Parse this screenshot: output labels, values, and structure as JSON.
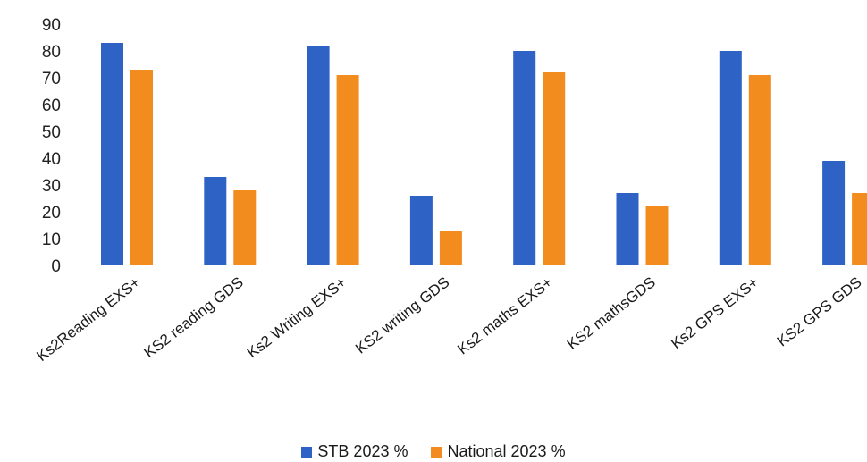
{
  "chart_data": {
    "type": "bar",
    "categories": [
      "Ks2Reading EXS+",
      "KS2 reading GDS",
      "Ks2 Writing EXS+",
      "KS2 writing GDS",
      "Ks2 maths EXS+",
      "KS2 mathsGDS",
      "Ks2 GPS EXS+",
      "KS2 GPS GDS"
    ],
    "series": [
      {
        "name": "STB 2023 %",
        "color": "#2e62c4",
        "values": [
          83,
          33,
          82,
          26,
          80,
          27,
          80,
          39
        ]
      },
      {
        "name": "National 2023 %",
        "color": "#f28c1e",
        "values": [
          73,
          28,
          71,
          13,
          72,
          22,
          71,
          27
        ]
      }
    ],
    "yticks": [
      0,
      10,
      20,
      30,
      40,
      50,
      60,
      70,
      80,
      90
    ],
    "ylim": [
      0,
      90
    ],
    "grid": false,
    "legend_position": "bottom"
  }
}
